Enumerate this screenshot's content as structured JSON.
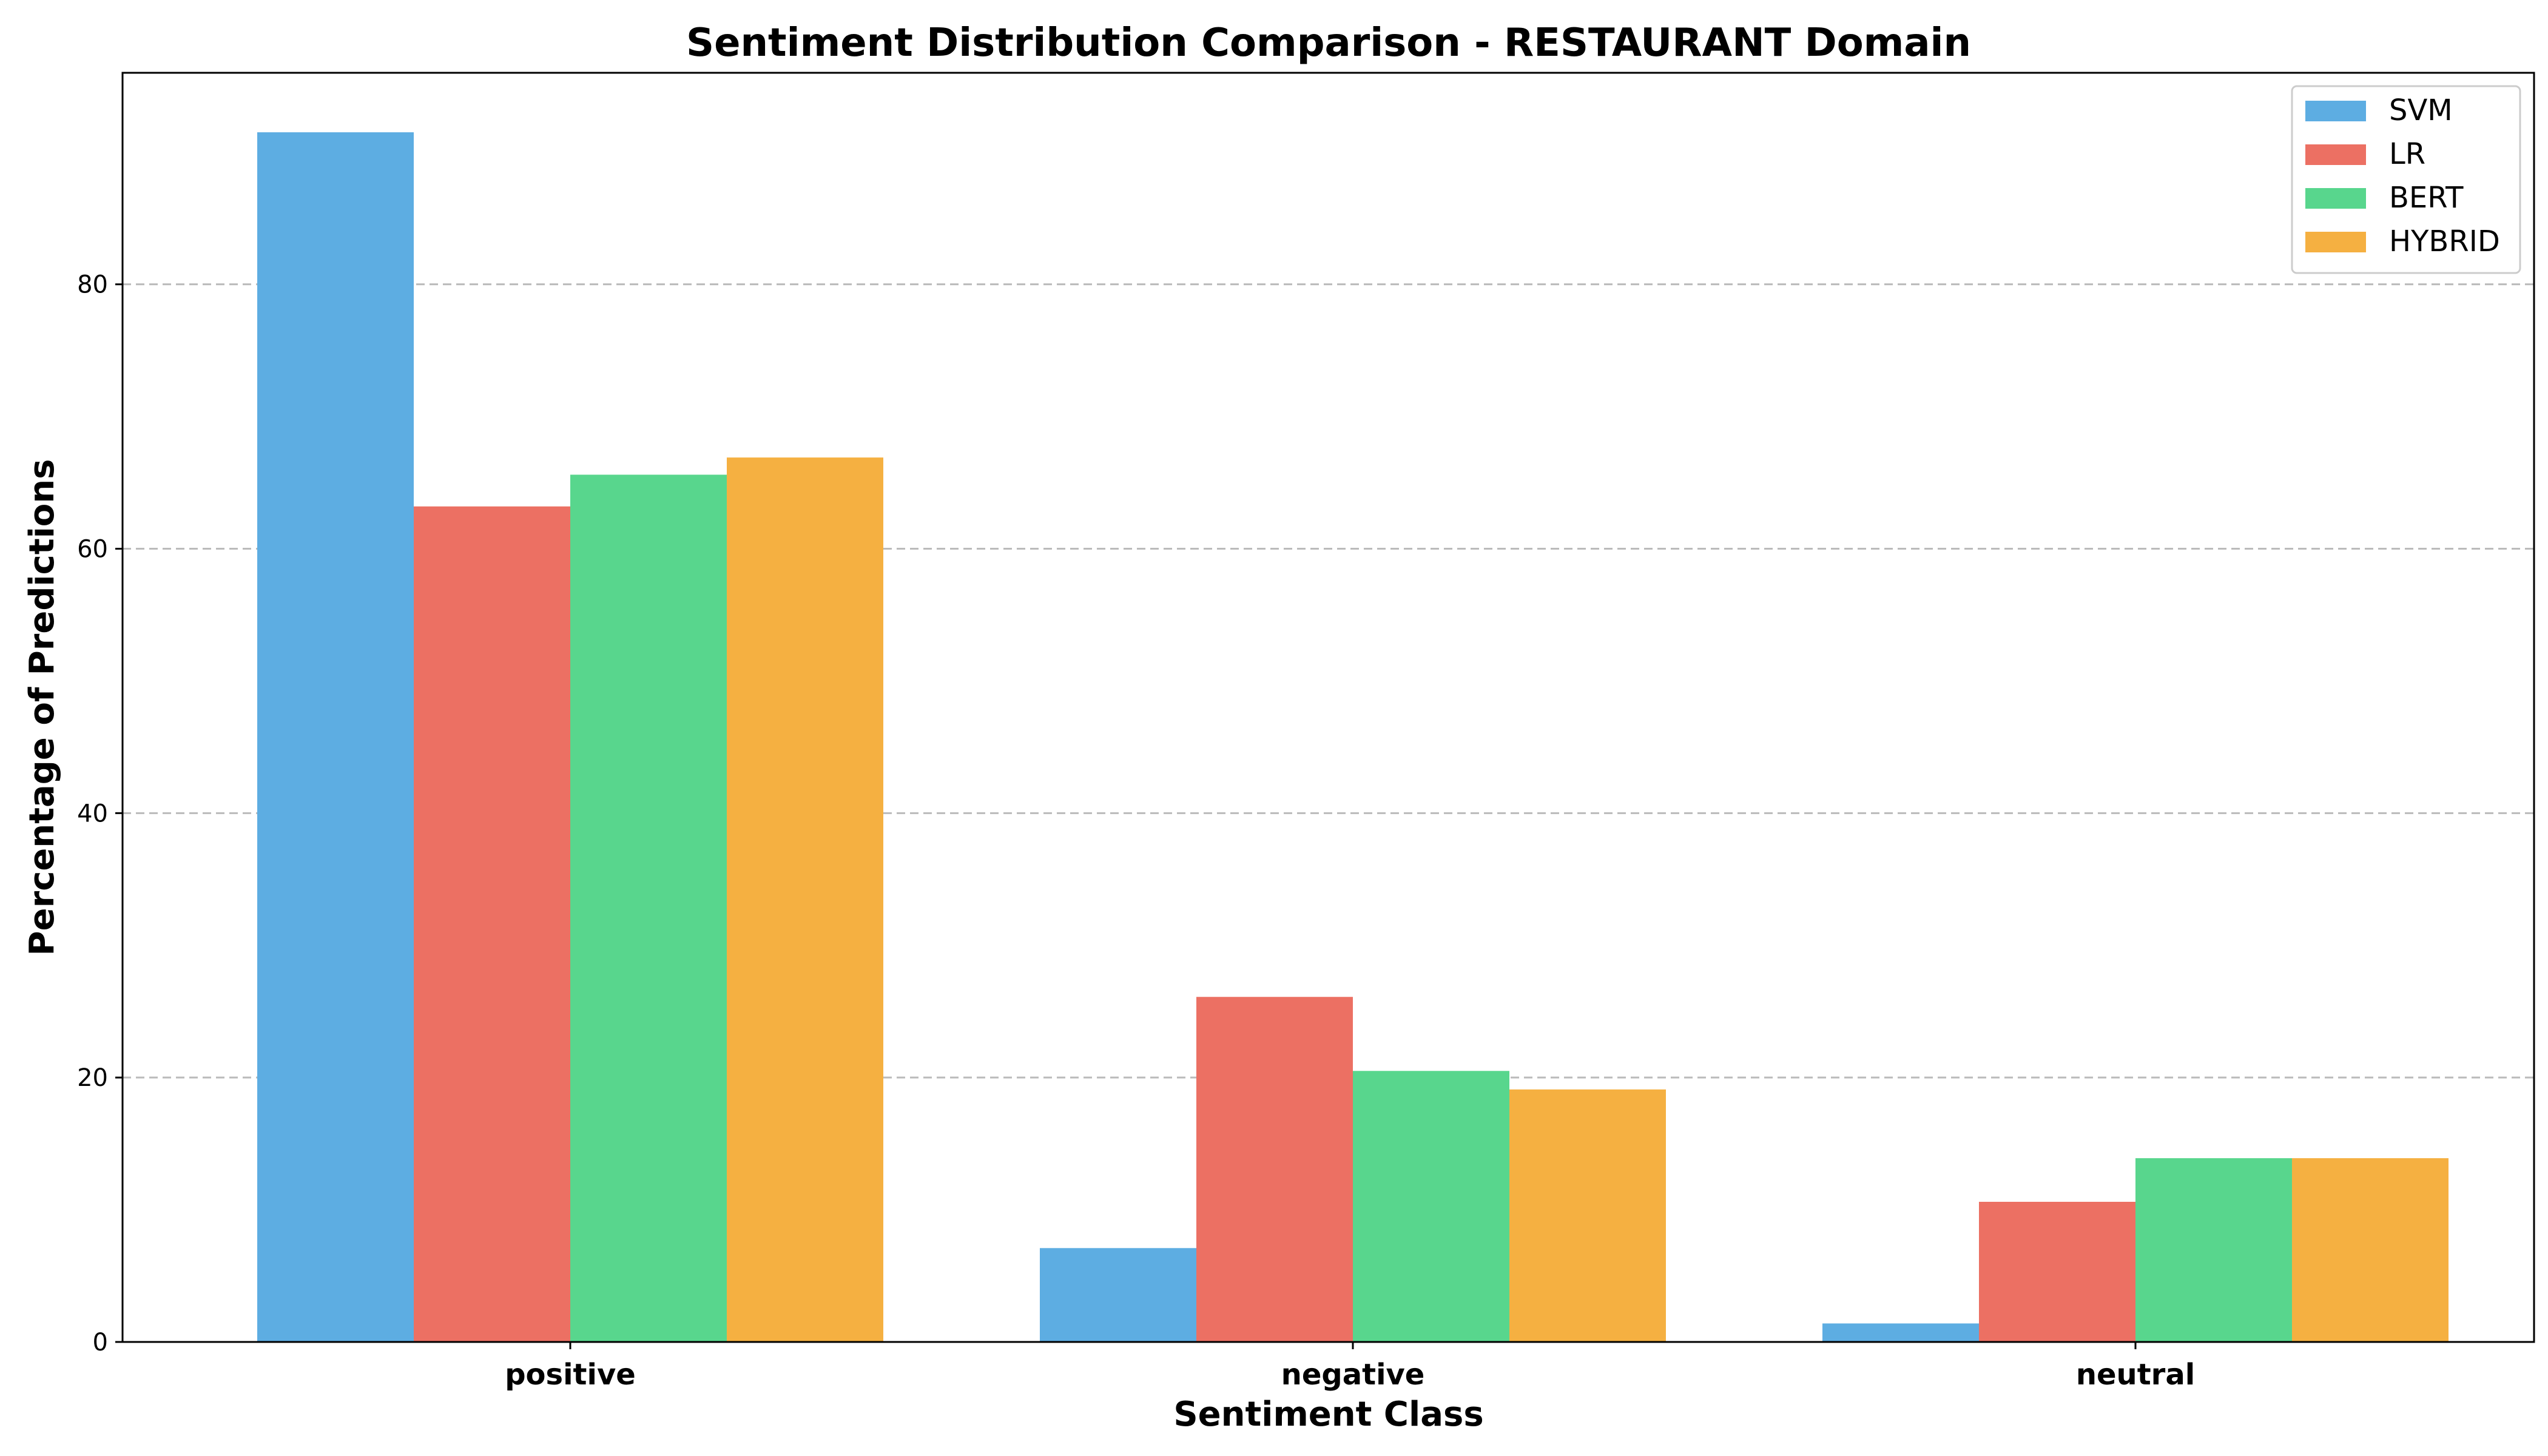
{
  "chart_data": {
    "type": "bar",
    "title": "Sentiment Distribution Comparison - RESTAURANT Domain",
    "xlabel": "Sentiment Class",
    "ylabel": "Percentage of Predictions",
    "categories": [
      "positive",
      "negative",
      "neutral"
    ],
    "series": [
      {
        "name": "SVM",
        "color": "#5dade2",
        "values": [
          91.5,
          7.1,
          1.4
        ]
      },
      {
        "name": "LR",
        "color": "#ec7063",
        "values": [
          63.2,
          26.1,
          10.6
        ]
      },
      {
        "name": "BERT",
        "color": "#58d68d",
        "values": [
          65.6,
          20.5,
          13.9
        ]
      },
      {
        "name": "HYBRID",
        "color": "#f5b041",
        "values": [
          66.9,
          19.1,
          13.9
        ]
      }
    ],
    "ylim": [
      0,
      96
    ],
    "yticks": [
      0,
      20,
      40,
      60,
      80
    ],
    "grid": true,
    "legend_position": "top-right"
  }
}
